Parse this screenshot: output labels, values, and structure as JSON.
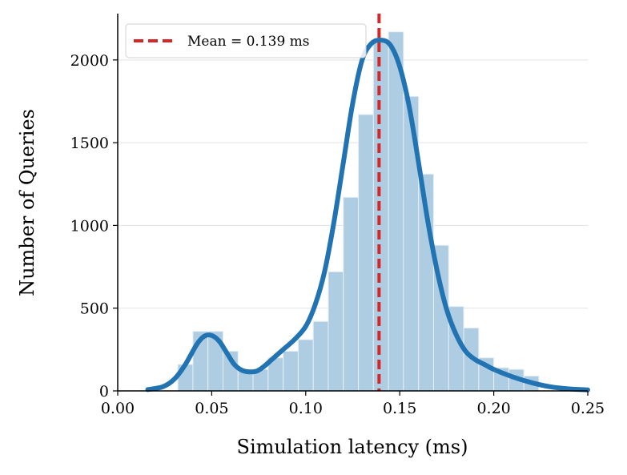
{
  "chart_data": {
    "type": "bar",
    "title": "",
    "xlabel": "Simulation latency (ms)",
    "ylabel": "Number of Queries",
    "xlim": [
      0.0,
      0.25
    ],
    "ylim": [
      0,
      2280
    ],
    "xticks": [
      "0.00",
      "0.05",
      "0.10",
      "0.15",
      "0.20",
      "0.25"
    ],
    "yticks": [
      "0",
      "500",
      "1000",
      "1500",
      "2000"
    ],
    "grid": "horizontal",
    "legend_position": "top-left",
    "histogram": {
      "bin_width": 0.008,
      "bin_starts": [
        0.032,
        0.04,
        0.048,
        0.056,
        0.064,
        0.072,
        0.08,
        0.088,
        0.096,
        0.104,
        0.112,
        0.12,
        0.128,
        0.136,
        0.144,
        0.152,
        0.16,
        0.168,
        0.176,
        0.184,
        0.192,
        0.2,
        0.208,
        0.216
      ],
      "counts": [
        160,
        360,
        360,
        240,
        130,
        130,
        200,
        240,
        310,
        420,
        720,
        1170,
        1670,
        2120,
        2170,
        1780,
        1310,
        880,
        510,
        380,
        200,
        140,
        130,
        90
      ]
    },
    "kde_curve": {
      "x": [
        0.016,
        0.024,
        0.03,
        0.036,
        0.042,
        0.046,
        0.05,
        0.054,
        0.058,
        0.062,
        0.066,
        0.07,
        0.074,
        0.078,
        0.082,
        0.088,
        0.094,
        0.1,
        0.105,
        0.11,
        0.115,
        0.12,
        0.125,
        0.13,
        0.135,
        0.14,
        0.145,
        0.15,
        0.155,
        0.16,
        0.165,
        0.17,
        0.175,
        0.18,
        0.185,
        0.19,
        0.195,
        0.2,
        0.21,
        0.22,
        0.23,
        0.24,
        0.25
      ],
      "y": [
        8,
        25,
        70,
        160,
        280,
        330,
        335,
        300,
        230,
        160,
        125,
        115,
        120,
        150,
        190,
        250,
        310,
        390,
        520,
        720,
        1020,
        1380,
        1740,
        2000,
        2100,
        2120,
        2090,
        1960,
        1720,
        1380,
        1020,
        720,
        490,
        340,
        240,
        190,
        160,
        130,
        85,
        50,
        25,
        12,
        6
      ]
    },
    "mean_line": {
      "x": 0.139,
      "label": "Mean = 0.139 ms"
    },
    "colors": {
      "bars": "#aecde3",
      "bar_edge": "#e6eff6",
      "kde": "#2273b2",
      "mean": "#d62728",
      "grid": "#e3e3e3"
    }
  }
}
